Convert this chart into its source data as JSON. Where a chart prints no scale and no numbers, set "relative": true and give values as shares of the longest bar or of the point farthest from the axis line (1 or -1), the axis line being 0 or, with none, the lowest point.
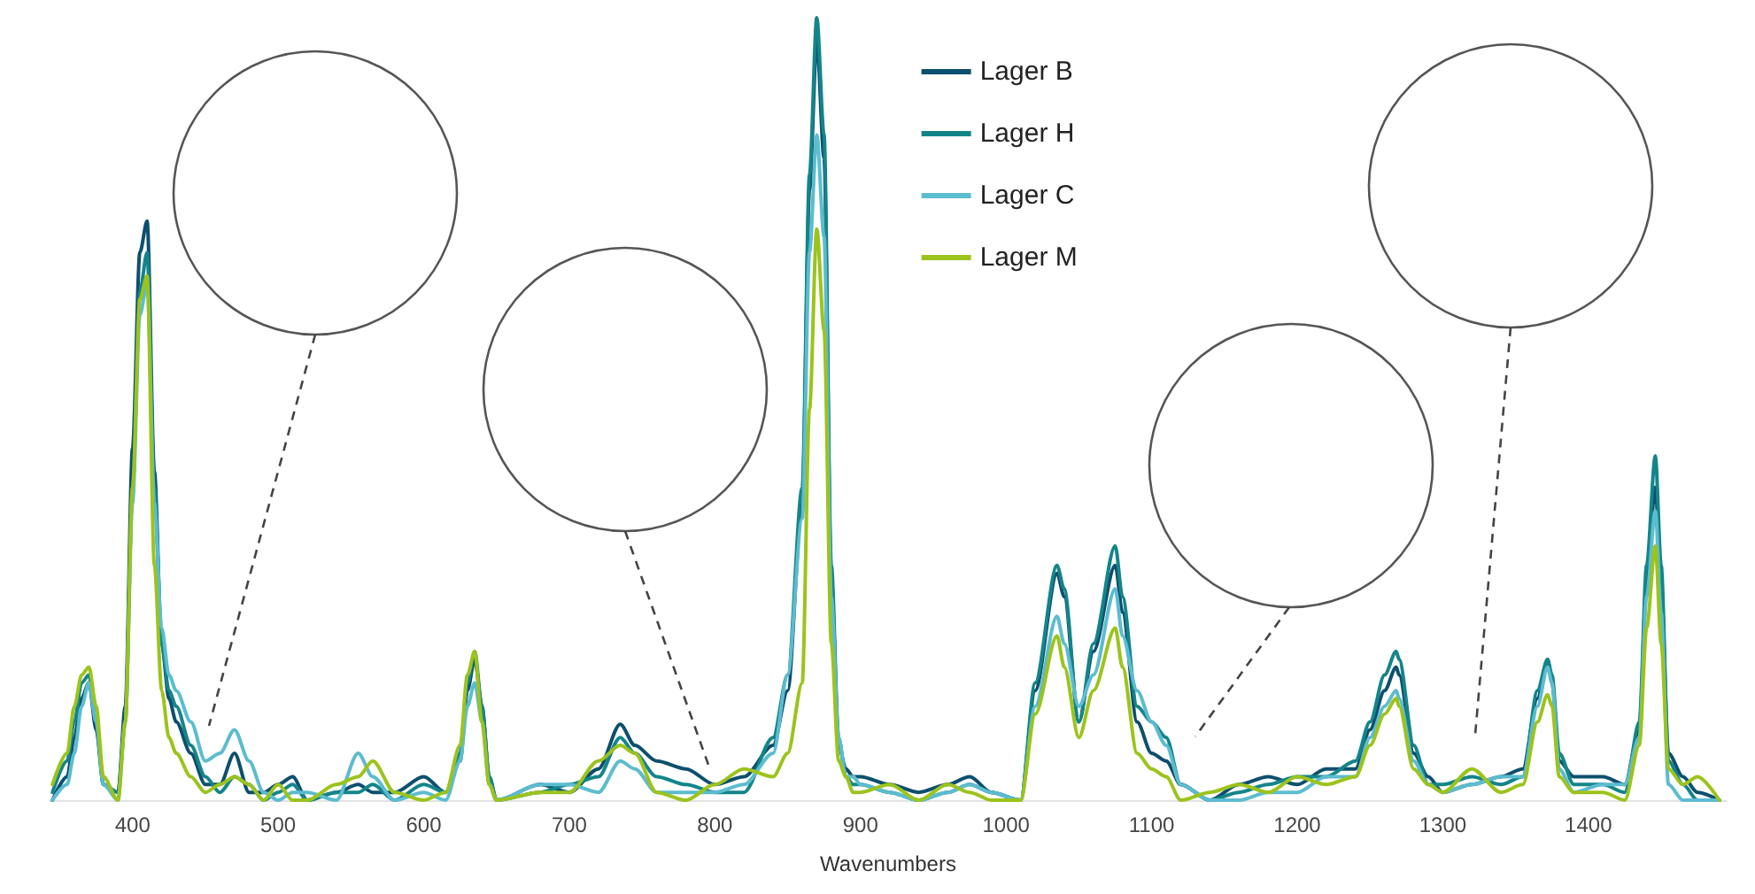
{
  "chart_data": {
    "type": "line",
    "relative": true,
    "xlabel": "Wavenumbers",
    "xlim": [
      343,
      1495
    ],
    "xticks": [
      400,
      500,
      600,
      700,
      800,
      900,
      1000,
      1100,
      1200,
      1300,
      1400
    ],
    "grid": false,
    "legend": "top",
    "marker": "none",
    "line_style": "solid",
    "x": [
      345,
      355,
      360,
      365,
      370,
      375,
      380,
      390,
      395,
      400,
      405,
      410,
      415,
      420,
      425,
      430,
      440,
      450,
      460,
      470,
      480,
      490,
      500,
      510,
      520,
      540,
      555,
      565,
      580,
      600,
      615,
      625,
      630,
      635,
      640,
      645,
      650,
      680,
      700,
      720,
      735,
      745,
      760,
      780,
      800,
      820,
      840,
      850,
      860,
      865,
      870,
      875,
      880,
      885,
      890,
      895,
      900,
      920,
      940,
      960,
      975,
      990,
      1010,
      1020,
      1035,
      1040,
      1050,
      1060,
      1075,
      1080,
      1090,
      1100,
      1110,
      1120,
      1140,
      1160,
      1180,
      1200,
      1220,
      1240,
      1250,
      1260,
      1268,
      1270,
      1280,
      1290,
      1300,
      1320,
      1340,
      1355,
      1365,
      1372,
      1375,
      1380,
      1390,
      1410,
      1425,
      1435,
      1440,
      1446,
      1450,
      1455,
      1465,
      1475,
      1490
    ],
    "series": [
      {
        "name": "Lager B",
        "color": "#0d4f6e",
        "values": [
          0,
          0.03,
          0.08,
          0.13,
          0.15,
          0.09,
          0.02,
          0.01,
          0.12,
          0.45,
          0.7,
          0.74,
          0.42,
          0.2,
          0.13,
          0.1,
          0.06,
          0.02,
          0.02,
          0.06,
          0.01,
          0.01,
          0.02,
          0.03,
          0,
          0.01,
          0.02,
          0.01,
          0.01,
          0.03,
          0.01,
          0.05,
          0.14,
          0.18,
          0.12,
          0.03,
          0,
          0.02,
          0.01,
          0.04,
          0.097,
          0.07,
          0.05,
          0.04,
          0.02,
          0.03,
          0.07,
          0.14,
          0.38,
          0.78,
          0.97,
          0.82,
          0.28,
          0.07,
          0.04,
          0.03,
          0.03,
          0.02,
          0.01,
          0.02,
          0.03,
          0.01,
          0,
          0.14,
          0.29,
          0.26,
          0.1,
          0.19,
          0.3,
          0.24,
          0.1,
          0.06,
          0.05,
          0.02,
          0,
          0.02,
          0.03,
          0.02,
          0.04,
          0.04,
          0.09,
          0.14,
          0.17,
          0.16,
          0.06,
          0.03,
          0.01,
          0.02,
          0.03,
          0.04,
          0.13,
          0.18,
          0.15,
          0.05,
          0.03,
          0.03,
          0.02,
          0.09,
          0.28,
          0.4,
          0.27,
          0.06,
          0.03,
          0.01,
          0
        ]
      },
      {
        "name": "Lager H",
        "color": "#13858a",
        "values": [
          0.01,
          0.05,
          0.1,
          0.15,
          0.16,
          0.1,
          0.02,
          0.01,
          0.1,
          0.4,
          0.65,
          0.7,
          0.4,
          0.2,
          0.14,
          0.12,
          0.07,
          0.03,
          0.01,
          0.03,
          0.02,
          0,
          0.01,
          0.02,
          0,
          0.01,
          0.01,
          0.02,
          0,
          0.02,
          0.01,
          0.06,
          0.15,
          0.19,
          0.12,
          0.03,
          0,
          0.01,
          0.02,
          0.03,
          0.08,
          0.06,
          0.03,
          0.02,
          0.01,
          0.01,
          0.08,
          0.16,
          0.4,
          0.8,
          1.0,
          0.85,
          0.3,
          0.08,
          0.03,
          0.02,
          0.02,
          0.01,
          0,
          0.01,
          0.02,
          0.01,
          0,
          0.15,
          0.3,
          0.27,
          0.1,
          0.2,
          0.325,
          0.26,
          0.12,
          0.1,
          0.08,
          0.02,
          0,
          0.01,
          0.02,
          0.03,
          0.03,
          0.05,
          0.1,
          0.16,
          0.19,
          0.18,
          0.07,
          0.02,
          0.02,
          0.03,
          0.02,
          0.03,
          0.14,
          0.18,
          0.16,
          0.06,
          0.02,
          0.02,
          0.01,
          0.1,
          0.3,
          0.44,
          0.3,
          0.05,
          0.02,
          0,
          0
        ]
      },
      {
        "name": "Lager C",
        "color": "#5cbcd0",
        "values": [
          0,
          0.02,
          0.06,
          0.12,
          0.15,
          0.1,
          0.02,
          0,
          0.1,
          0.38,
          0.62,
          0.66,
          0.38,
          0.22,
          0.16,
          0.14,
          0.1,
          0.05,
          0.06,
          0.09,
          0.05,
          0.01,
          0,
          0.01,
          0.01,
          0,
          0.06,
          0.03,
          0,
          0.01,
          0,
          0.05,
          0.12,
          0.15,
          0.1,
          0.02,
          0,
          0.02,
          0.02,
          0.01,
          0.05,
          0.04,
          0.01,
          0.01,
          0.01,
          0.02,
          0.06,
          0.16,
          0.36,
          0.7,
          0.85,
          0.72,
          0.26,
          0.08,
          0.03,
          0.03,
          0.02,
          0.01,
          0,
          0.01,
          0.02,
          0.01,
          0,
          0.12,
          0.235,
          0.2,
          0.12,
          0.16,
          0.27,
          0.21,
          0.14,
          0.1,
          0.07,
          0.02,
          0,
          0,
          0.01,
          0.01,
          0.03,
          0.03,
          0.08,
          0.12,
          0.14,
          0.13,
          0.05,
          0.02,
          0.01,
          0.02,
          0.03,
          0.03,
          0.12,
          0.17,
          0.15,
          0.04,
          0.01,
          0.02,
          0.02,
          0.08,
          0.26,
          0.37,
          0.24,
          0.02,
          0,
          0,
          0
        ]
      },
      {
        "name": "Lager M",
        "color": "#9cc31c",
        "values": [
          0.02,
          0.06,
          0.12,
          0.16,
          0.17,
          0.12,
          0.03,
          0,
          0.1,
          0.4,
          0.64,
          0.67,
          0.3,
          0.14,
          0.08,
          0.06,
          0.03,
          0.01,
          0.02,
          0.03,
          0.02,
          0,
          0.02,
          0,
          0,
          0.02,
          0.03,
          0.05,
          0.01,
          0,
          0.01,
          0.07,
          0.16,
          0.19,
          0.1,
          0.02,
          0,
          0.01,
          0.01,
          0.05,
          0.07,
          0.06,
          0.01,
          0,
          0.02,
          0.04,
          0.03,
          0.06,
          0.15,
          0.5,
          0.73,
          0.6,
          0.2,
          0.05,
          0.03,
          0.01,
          0.01,
          0.02,
          0,
          0.02,
          0.01,
          0,
          0,
          0.11,
          0.21,
          0.17,
          0.08,
          0.14,
          0.22,
          0.17,
          0.06,
          0.04,
          0.03,
          0,
          0.01,
          0.02,
          0.01,
          0.03,
          0.02,
          0.03,
          0.07,
          0.11,
          0.13,
          0.12,
          0.04,
          0.02,
          0.01,
          0.04,
          0.01,
          0.02,
          0.1,
          0.135,
          0.12,
          0.03,
          0.01,
          0.01,
          0,
          0.07,
          0.22,
          0.325,
          0.2,
          0.04,
          0.02,
          0.03,
          0
        ]
      }
    ]
  }
}
